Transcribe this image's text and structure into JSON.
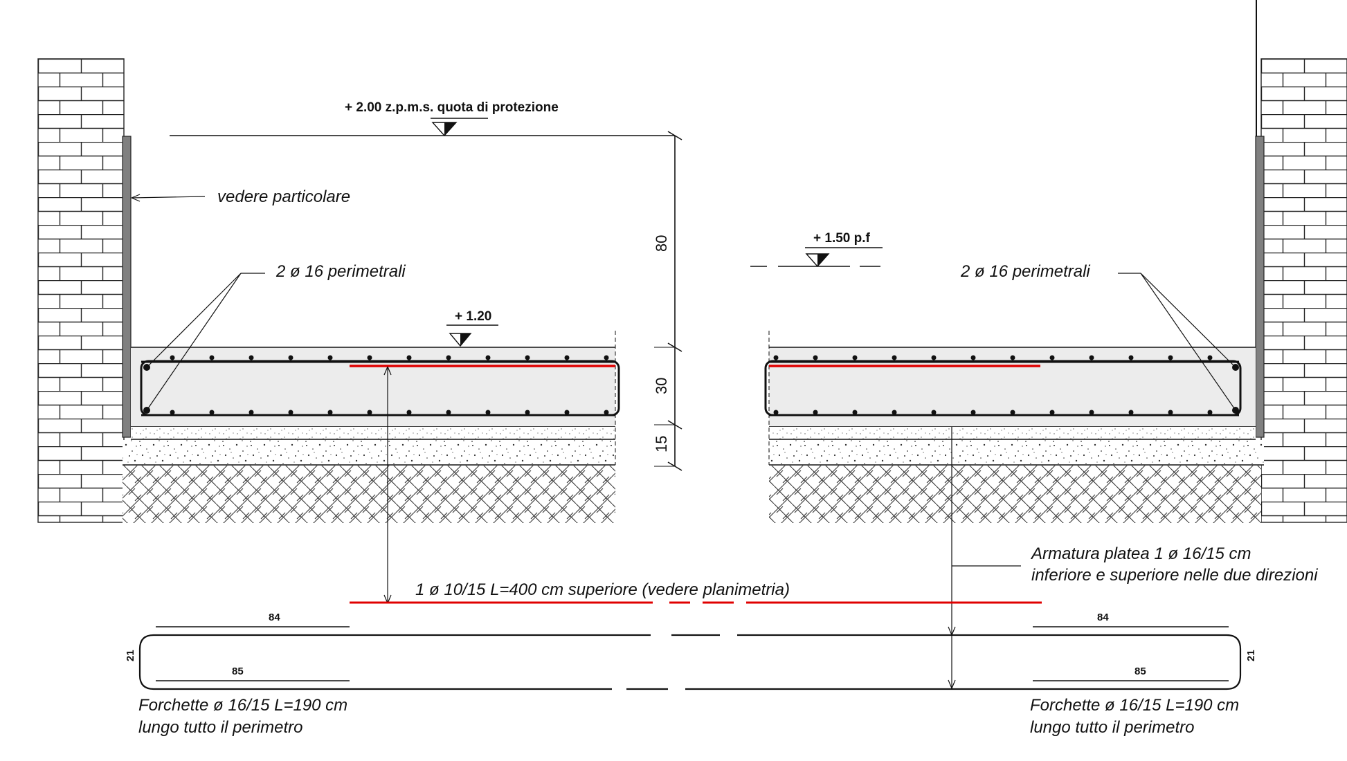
{
  "labels": {
    "quota_protezione": "+ 2.00 z.p.m.s. quota di protezione",
    "vedere_particolare": "vedere particolare",
    "perimetrali_left": "2 ø 16 perimetrali",
    "perimetrali_right": "2 ø 16 perimetrali",
    "quota_120": "+ 1.20",
    "quota_150": "+ 1.50 p.f",
    "dim_80": "80",
    "dim_30": "30",
    "dim_15": "15",
    "armatura_line1": "Armatura platea 1 ø 16/15 cm",
    "armatura_line2": "inferiore e superiore nelle due direzioni",
    "ferro_superiore": "1 ø 10/15 L=400 cm  superiore (vedere planimetria)",
    "forchette_left_1": "Forchette ø 16/15 L=190 cm",
    "forchette_left_2": "lungo tutto il perimetro",
    "forchette_right_1": "Forchette ø 16/15 L=190 cm",
    "forchette_right_2": "lungo tutto il perimetro",
    "bar_84_left": "84",
    "bar_85_left": "85",
    "bar_21_left": "21",
    "bar_84_right": "84",
    "bar_85_right": "85",
    "bar_21_right": "21"
  },
  "colors": {
    "line": "#111111",
    "red_bar": "#e00000",
    "slab_fill": "#ececec",
    "wall_plate": "#808080"
  }
}
